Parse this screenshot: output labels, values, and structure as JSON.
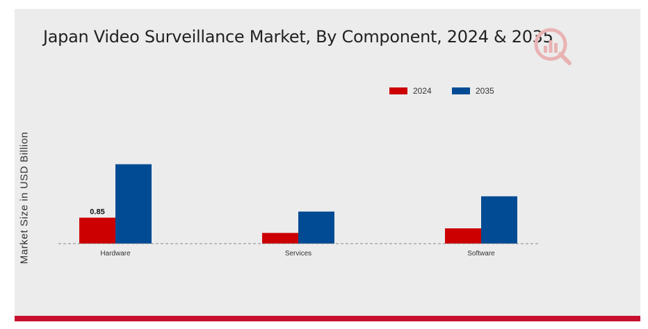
{
  "title": "Japan Video Surveillance Market, By Component, 2024 & 2035",
  "chart_data": {
    "type": "bar",
    "title": "Japan Video Surveillance Market, By Component, 2024 & 2035",
    "xlabel": "",
    "ylabel": "Market Size in USD Billion",
    "categories": [
      "Hardware",
      "Services",
      "Software"
    ],
    "series": [
      {
        "name": "2024",
        "color": "#cc0000",
        "values": [
          0.85,
          0.35,
          0.5
        ]
      },
      {
        "name": "2035",
        "color": "#004b93",
        "values": [
          2.6,
          1.05,
          1.55
        ]
      }
    ],
    "data_labels": [
      {
        "series": "2024",
        "category": "Hardware",
        "text": "0.85"
      }
    ],
    "ylim": [
      0,
      5.5
    ],
    "grid": false,
    "legend_position": "top-right"
  },
  "legend": [
    {
      "label": "2024",
      "color": "#cc0000"
    },
    {
      "label": "2035",
      "color": "#004b93"
    }
  ],
  "icons": {
    "logo": "market-research-logo-icon"
  }
}
